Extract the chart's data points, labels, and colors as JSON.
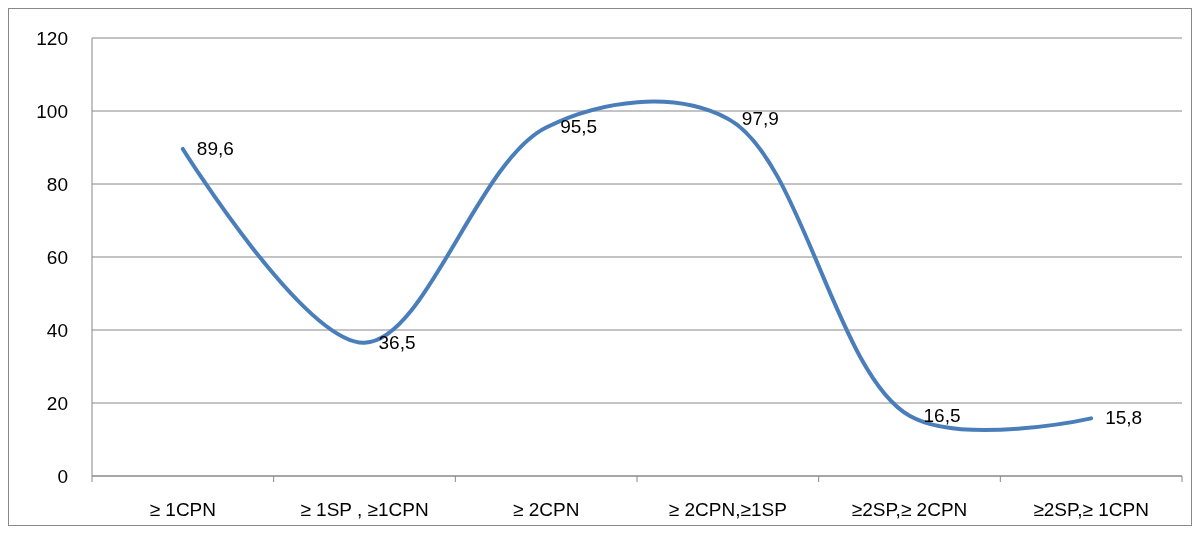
{
  "chart_data": {
    "type": "line",
    "categories": [
      "≥ 1CPN",
      "≥ 1SP , ≥1CPN",
      "≥ 2CPN",
      "≥ 2CPN,≥1SP",
      "≥2SP,≥ 2CPN",
      "≥2SP,≥ 1CPN"
    ],
    "series": [
      {
        "color": "#4a7ebb",
        "values": [
          89.6,
          36.5,
          95.5,
          97.9,
          16.5,
          15.8
        ],
        "value_labels": [
          "89,6",
          "36,5",
          "95,5",
          "97,9",
          "16,5",
          "15,8"
        ]
      }
    ],
    "ylim": [
      0,
      120
    ],
    "yticks": [
      0,
      20,
      40,
      60,
      80,
      100,
      120
    ],
    "grid": "y",
    "marker": "none",
    "line_style": "solid"
  }
}
